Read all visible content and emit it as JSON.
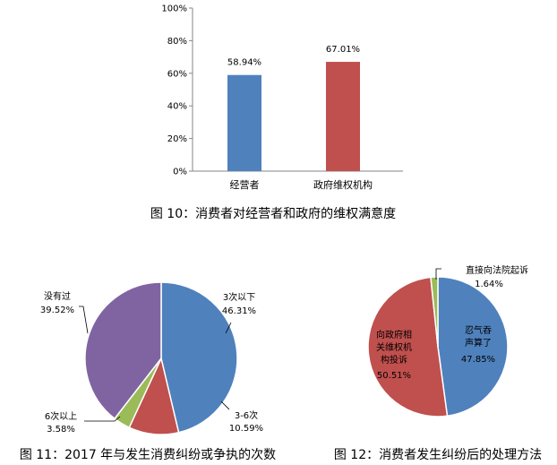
{
  "chart_data": [
    {
      "type": "bar",
      "categories": [
        "经营者",
        "政府维权机构"
      ],
      "values": [
        58.94,
        67.01
      ],
      "data_labels": [
        "58.94%",
        "67.01%"
      ],
      "colors": [
        "#4f81bd",
        "#c0504d"
      ],
      "ylim": [
        0,
        100
      ],
      "yticks": [
        "0%",
        "20%",
        "40%",
        "60%",
        "80%",
        "100%"
      ],
      "title": "图 10：消费者对经营者和政府的维权满意度",
      "grid": false
    },
    {
      "type": "pie",
      "slices": [
        {
          "label": "3次以下",
          "value": 46.31,
          "value_label": "46.31%",
          "color": "#4f81bd"
        },
        {
          "label": "3-6次",
          "value": 10.59,
          "value_label": "10.59%",
          "color": "#c0504d"
        },
        {
          "label": "6次以上",
          "value": 3.58,
          "value_label": "3.58%",
          "color": "#9bbb59"
        },
        {
          "label": "没有过",
          "value": 39.52,
          "value_label": "39.52%",
          "color": "#8064a2"
        }
      ],
      "title": "图 11：2017 年与发生消费纠纷或争执的次数"
    },
    {
      "type": "pie",
      "slices": [
        {
          "label": "忍气吞声算了",
          "value": 47.85,
          "value_label": "47.85%",
          "color": "#4f81bd"
        },
        {
          "label": "向政府相关维权机构投诉",
          "value": 50.51,
          "value_label": "50.51%",
          "color": "#c0504d"
        },
        {
          "label": "直接向法院起诉",
          "value": 1.64,
          "value_label": "1.64%",
          "color": "#9bbb59"
        }
      ],
      "title": "图 12：消费者发生纠纷后的处理方法"
    }
  ]
}
